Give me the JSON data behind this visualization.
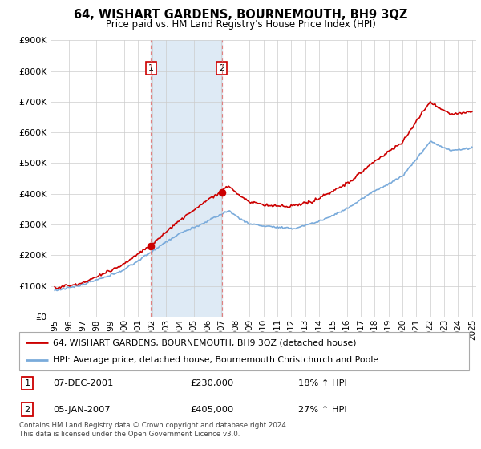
{
  "title": "64, WISHART GARDENS, BOURNEMOUTH, BH9 3QZ",
  "subtitle": "Price paid vs. HM Land Registry's House Price Index (HPI)",
  "legend_line1": "64, WISHART GARDENS, BOURNEMOUTH, BH9 3QZ (detached house)",
  "legend_line2": "HPI: Average price, detached house, Bournemouth Christchurch and Poole",
  "table_row1": [
    "1",
    "07-DEC-2001",
    "£230,000",
    "18% ↑ HPI"
  ],
  "table_row2": [
    "2",
    "05-JAN-2007",
    "£405,000",
    "27% ↑ HPI"
  ],
  "footnote": "Contains HM Land Registry data © Crown copyright and database right 2024.\nThis data is licensed under the Open Government Licence v3.0.",
  "purchase1_year": 2001.92,
  "purchase1_price": 230000,
  "purchase2_year": 2007.02,
  "purchase2_price": 405000,
  "red_color": "#cc0000",
  "blue_color": "#7aabdb",
  "shade_color": "#deeaf5",
  "ylim": [
    0,
    900000
  ],
  "yticks": [
    0,
    100000,
    200000,
    300000,
    400000,
    500000,
    600000,
    700000,
    800000,
    900000
  ],
  "xstart": 1995,
  "xend": 2025
}
